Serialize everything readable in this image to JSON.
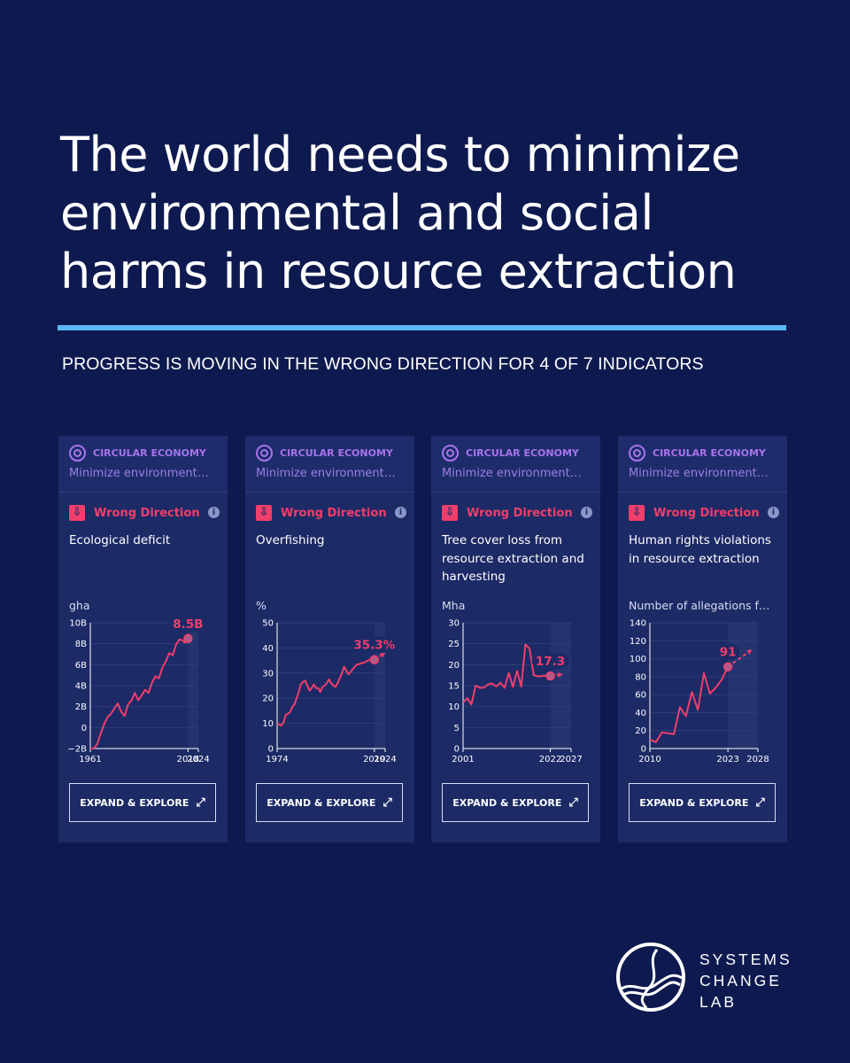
{
  "headline": "The world needs to minimize environmental and social harms in resource extraction",
  "subhead": "PROGRESS IS MOVING IN THE WRONG DIRECTION FOR 4 OF 7 INDICATORS",
  "colors": {
    "background": "#0e1a4f",
    "rule": "#5bb8f5",
    "category": "#a874ea",
    "wrong_direction": "#ef3f6a",
    "card": "#1c2a66"
  },
  "icons": {
    "category": "circular-economy-icon",
    "status": "arrow-down-icon",
    "info": "info-icon",
    "external": "external-link-icon"
  },
  "logo": {
    "line1": "SYSTEMS",
    "line2": "CHANGE",
    "line3": "LAB"
  },
  "cards": [
    {
      "category": "CIRCULAR ECONOMY",
      "goal": "Minimize environment…",
      "status": "Wrong Direction",
      "status_glyph": "⇩",
      "info_glyph": "i",
      "indicator": "Ecological deficit",
      "unit": "gha",
      "button": "EXPAND & EXPLORE",
      "button_glyph": "⤢"
    },
    {
      "category": "CIRCULAR ECONOMY",
      "goal": "Minimize environment…",
      "status": "Wrong Direction",
      "status_glyph": "⇩",
      "info_glyph": "i",
      "indicator": "Overfishing",
      "unit": "%",
      "button": "EXPAND & EXPLORE",
      "button_glyph": "⤢"
    },
    {
      "category": "CIRCULAR ECONOMY",
      "goal": "Minimize environment…",
      "status": "Wrong Direction",
      "status_glyph": "⇩",
      "info_glyph": "i",
      "indicator": "Tree cover loss from resource extraction and harvesting",
      "unit": "Mha",
      "button": "EXPAND & EXPLORE",
      "button_glyph": "⤢"
    },
    {
      "category": "CIRCULAR ECONOMY",
      "goal": "Minimize environment…",
      "status": "Wrong Direction",
      "status_glyph": "⇩",
      "info_glyph": "i",
      "indicator": "Human rights violations in resource extraction",
      "unit": "Number of allegations f…",
      "button": "EXPAND & EXPLORE",
      "button_glyph": "⤢"
    }
  ],
  "chart_data": [
    {
      "type": "line",
      "ylabel": "gha",
      "ylim": [
        -2,
        10
      ],
      "yticks": [
        -2,
        0,
        2,
        4,
        6,
        8,
        10
      ],
      "ytick_labels": [
        "−2B",
        "0",
        "2B",
        "4B",
        "6B",
        "8B",
        "10B"
      ],
      "xlim": [
        1961,
        2024
      ],
      "xtick_labels": [
        "1961",
        "2018",
        "2024"
      ],
      "xticks": [
        1961,
        2018,
        2024
      ],
      "grid": true,
      "latest": {
        "x": 2018,
        "y": 8.5,
        "label": "8.5B"
      },
      "projection": null,
      "x": [
        1961,
        1963,
        1965,
        1967,
        1969,
        1971,
        1973,
        1975,
        1977,
        1979,
        1981,
        1983,
        1985,
        1987,
        1989,
        1991,
        1993,
        1995,
        1997,
        1999,
        2001,
        2003,
        2005,
        2007,
        2009,
        2011,
        2013,
        2015,
        2016,
        2017,
        2018
      ],
      "values": [
        -2,
        -2,
        -1.6,
        -0.6,
        0.3,
        1,
        1.3,
        1.8,
        2.3,
        1.5,
        1.1,
        2.2,
        2.6,
        3.3,
        2.6,
        3.1,
        3.6,
        3.3,
        4.3,
        4.9,
        4.7,
        5.7,
        6.3,
        7.1,
        6.9,
        7.9,
        8.4,
        8.3,
        8.1,
        8.6,
        8.5
      ]
    },
    {
      "type": "line",
      "ylabel": "%",
      "ylim": [
        0,
        50
      ],
      "yticks": [
        0,
        10,
        20,
        30,
        40,
        50
      ],
      "ytick_labels": [
        "0",
        "10",
        "20",
        "30",
        "40",
        "50"
      ],
      "xlim": [
        1974,
        2024
      ],
      "xtick_labels": [
        "1974",
        "2019",
        "2024"
      ],
      "xticks": [
        1974,
        2019,
        2024
      ],
      "grid": true,
      "latest": {
        "x": 2019,
        "y": 35.3,
        "label": "35.3%"
      },
      "projection": {
        "x": [
          2019,
          2024
        ],
        "values": [
          35.3,
          38
        ]
      },
      "x": [
        1974,
        1975,
        1976,
        1977,
        1978,
        1979,
        1980,
        1981,
        1982,
        1983,
        1984,
        1985,
        1986,
        1987,
        1988,
        1989,
        1990,
        1991,
        1992,
        1993,
        1994,
        1995,
        1996,
        1997,
        1998,
        1999,
        2000,
        2001,
        2002,
        2003,
        2004,
        2005,
        2006,
        2007,
        2008,
        2009,
        2010,
        2011,
        2012,
        2013,
        2014,
        2015,
        2016,
        2017,
        2018,
        2019
      ],
      "values": [
        10,
        9.5,
        9.2,
        10.5,
        13.5,
        13.8,
        14.5,
        16.5,
        17.5,
        20,
        22.5,
        25.5,
        26.5,
        27,
        25,
        23,
        24,
        25.5,
        24,
        24,
        22.5,
        24.5,
        25,
        26,
        27.5,
        26,
        25,
        24.5,
        26,
        28,
        30,
        32.5,
        31,
        29.5,
        30.5,
        31.5,
        32.5,
        33.5,
        33.5,
        34,
        34,
        34.5,
        35,
        35.2,
        35.1,
        35.3
      ]
    },
    {
      "type": "line",
      "ylabel": "Mha",
      "ylim": [
        0,
        30
      ],
      "yticks": [
        0,
        5,
        10,
        15,
        20,
        25,
        30
      ],
      "ytick_labels": [
        "0",
        "5",
        "10",
        "15",
        "20",
        "25",
        "30"
      ],
      "xlim": [
        2001,
        2027
      ],
      "xtick_labels": [
        "2001",
        "2022",
        "2027"
      ],
      "xticks": [
        2001,
        2022,
        2027
      ],
      "grid": true,
      "latest": {
        "x": 2022,
        "y": 17.3,
        "label": "17.3"
      },
      "projection": {
        "x": [
          2022,
          2025
        ],
        "values": [
          17.3,
          17.7
        ]
      },
      "x": [
        2001,
        2002,
        2003,
        2004,
        2005,
        2006,
        2007,
        2008,
        2009,
        2010,
        2011,
        2012,
        2013,
        2014,
        2015,
        2016,
        2017,
        2018,
        2019,
        2020,
        2021,
        2022
      ],
      "values": [
        11,
        12,
        10.5,
        15,
        14.5,
        14.5,
        15.3,
        15.5,
        14.8,
        15.7,
        14.5,
        18,
        14.7,
        18.5,
        14.8,
        24.8,
        23.8,
        17.5,
        17.2,
        17.3,
        17.4,
        17.3
      ]
    },
    {
      "type": "line",
      "ylabel": "Number of allegations f…",
      "ylim": [
        0,
        140
      ],
      "yticks": [
        0,
        20,
        40,
        60,
        80,
        100,
        120,
        140
      ],
      "ytick_labels": [
        "0",
        "20",
        "40",
        "60",
        "80",
        "100",
        "120",
        "140"
      ],
      "xlim": [
        2010,
        2028
      ],
      "xtick_labels": [
        "2010",
        "2023",
        "2028"
      ],
      "xticks": [
        2010,
        2023,
        2028
      ],
      "grid": true,
      "latest": {
        "x": 2023,
        "y": 91,
        "label": "91"
      },
      "projection": {
        "x": [
          2023,
          2027
        ],
        "values": [
          91,
          110
        ]
      },
      "x": [
        2010,
        2011,
        2012,
        2013,
        2014,
        2015,
        2016,
        2017,
        2018,
        2019,
        2020,
        2021,
        2022,
        2023
      ],
      "values": [
        10,
        7,
        18,
        17,
        16,
        46,
        36,
        63,
        43,
        84,
        61,
        68,
        77,
        91
      ]
    }
  ]
}
